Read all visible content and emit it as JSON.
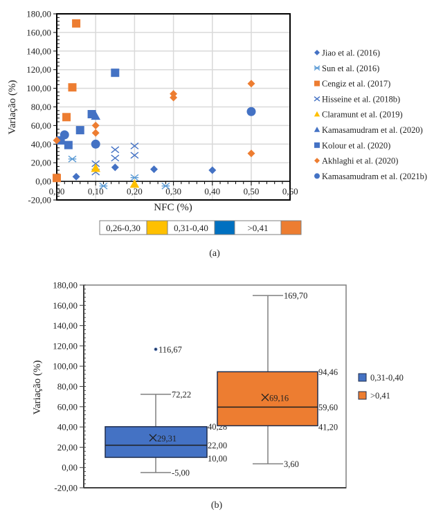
{
  "chart_data": [
    {
      "id": "a",
      "type": "scatter",
      "caption": "(a)",
      "title": "",
      "xlabel": "NFC (%)",
      "ylabel": "Variação (%)",
      "xlim": [
        0,
        0.6
      ],
      "ylim": [
        -20,
        180
      ],
      "x_ticks": [
        "0,00",
        "0,10",
        "0,20",
        "0,30",
        "0,40",
        "0,50",
        "0,60"
      ],
      "x_tick_values": [
        0,
        0.1,
        0.2,
        0.3,
        0.4,
        0.5,
        0.6
      ],
      "y_ticks": [
        "-20,00",
        "0,00",
        "20,00",
        "40,00",
        "60,00",
        "80,00",
        "100,00",
        "120,00",
        "140,00",
        "160,00",
        "180,00"
      ],
      "y_tick_values": [
        -20,
        0,
        20,
        40,
        60,
        80,
        100,
        120,
        140,
        160,
        180
      ],
      "grid": true,
      "legend_position": "right",
      "series": [
        {
          "name": "Jiao et al. (2016)",
          "marker": "diamond",
          "color": "#4472C4",
          "points": [
            [
              0.05,
              5
            ],
            [
              0.15,
              15
            ],
            [
              0.25,
              13
            ],
            [
              0.4,
              12
            ]
          ]
        },
        {
          "name": "Sun et al. (2016)",
          "marker": "asterisk",
          "color": "#5B9BD5",
          "points": [
            [
              0.04,
              24
            ],
            [
              0.12,
              -5
            ],
            [
              0.2,
              4
            ],
            [
              0.28,
              -5
            ]
          ]
        },
        {
          "name": "Cengiz et al. (2017)",
          "marker": "square",
          "color": "#ED7D31",
          "points": [
            [
              0.0,
              3.6
            ],
            [
              0.025,
              69
            ],
            [
              0.04,
              101
            ],
            [
              0.05,
              169.7
            ]
          ]
        },
        {
          "name": "Hisseine et al. (2018b)",
          "marker": "x",
          "color": "#4472C4",
          "points": [
            [
              0.1,
              19
            ],
            [
              0.1,
              10
            ],
            [
              0.15,
              34
            ],
            [
              0.15,
              25
            ],
            [
              0.2,
              38
            ],
            [
              0.2,
              28
            ]
          ]
        },
        {
          "name": "Claramunt et al. (2019)",
          "marker": "triangle",
          "color": "#FFC000",
          "points": [
            [
              0.1,
              14
            ],
            [
              0.2,
              -3
            ]
          ]
        },
        {
          "name": "Kamasamudram et al. (2020)",
          "marker": "triangle",
          "color": "#4472C4",
          "points": [
            [
              0.1,
              70
            ]
          ]
        },
        {
          "name": "Kolour et al. (2020)",
          "marker": "square",
          "color": "#4472C4",
          "points": [
            [
              0.01,
              44
            ],
            [
              0.03,
              39
            ],
            [
              0.06,
              55
            ],
            [
              0.09,
              72.2
            ],
            [
              0.15,
              116.67
            ]
          ]
        },
        {
          "name": "Akhlaghi et al. (2020)",
          "marker": "diamond",
          "color": "#ED7D31",
          "points": [
            [
              0.0,
              44
            ],
            [
              0.1,
              60
            ],
            [
              0.1,
              52
            ],
            [
              0.3,
              94
            ],
            [
              0.3,
              90
            ],
            [
              0.5,
              105
            ],
            [
              0.5,
              30
            ]
          ]
        },
        {
          "name": "Kamasamudram et al. (2021b)",
          "marker": "circle",
          "color": "#4472C4",
          "points": [
            [
              0.02,
              50
            ],
            [
              0.1,
              40
            ],
            [
              0.5,
              75
            ]
          ]
        }
      ],
      "color_key": [
        {
          "label": "0,26-0,30",
          "color": "#FFC000"
        },
        {
          "label": "0,31-0,40",
          "color": "#0070C0"
        },
        {
          "label": ">0,41",
          "color": "#ED7D31"
        }
      ]
    },
    {
      "id": "b",
      "type": "box",
      "caption": "(b)",
      "title": "",
      "xlabel": "",
      "ylabel": "Variação (%)",
      "ylim": [
        -20,
        180
      ],
      "y_ticks": [
        "-20,00",
        "0,00",
        "20,00",
        "40,00",
        "60,00",
        "80,00",
        "100,00",
        "120,00",
        "140,00",
        "160,00",
        "180,00"
      ],
      "y_tick_values": [
        -20,
        0,
        20,
        40,
        60,
        80,
        100,
        120,
        140,
        160,
        180
      ],
      "grid": false,
      "legend_position": "right",
      "series": [
        {
          "name": "0,31-0,40",
          "color": "#4472C4",
          "min": -5.0,
          "q1": 10.0,
          "median": 22.0,
          "q3": 40.28,
          "max": 72.22,
          "mean": 29.31,
          "outliers": [
            116.67
          ],
          "labels": {
            "min": "-5,00",
            "q1": "10,00",
            "median": "22,00",
            "q3": "40,28",
            "max": "72,22",
            "mean": "29,31",
            "outlier": "116,67"
          }
        },
        {
          "name": ">0,41",
          "color": "#ED7D31",
          "min": 3.6,
          "q1": 41.2,
          "median": 59.6,
          "q3": 94.46,
          "max": 169.7,
          "mean": 69.16,
          "outliers": [],
          "labels": {
            "min": "3,60",
            "q1": "41,20",
            "median": "59,60",
            "q3": "94,46",
            "max": "169,70",
            "mean": "69,16"
          }
        }
      ]
    }
  ]
}
